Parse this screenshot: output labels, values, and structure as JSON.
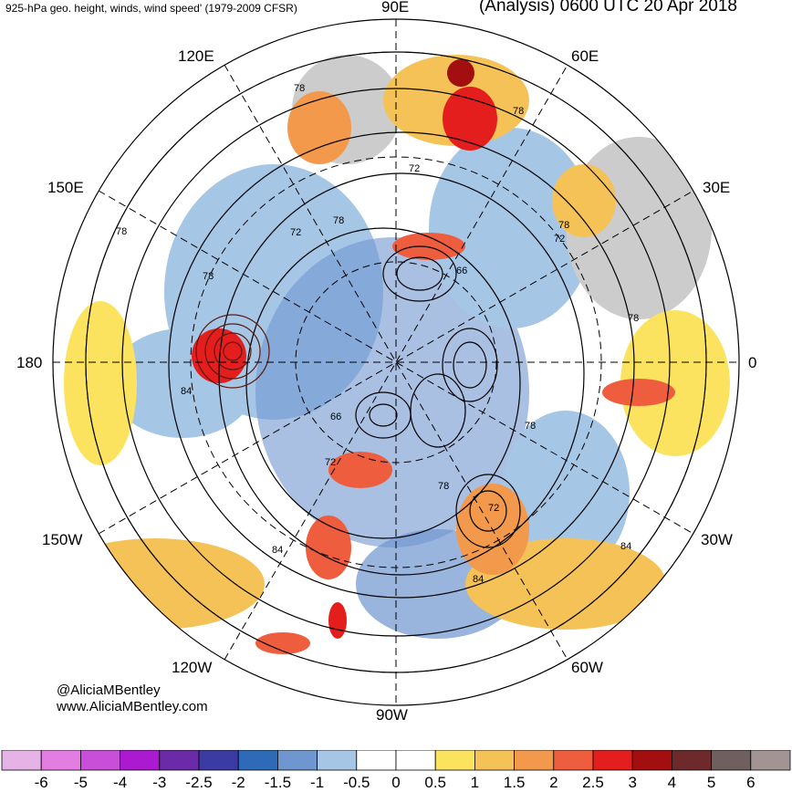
{
  "header": {
    "subtitle": "925-hPa geo. height, winds, wind speed' (1979-2009 CFSR)",
    "title": "(Analysis) 0600 UTC 20 Apr 2018"
  },
  "map": {
    "projection": "north-polar-stereographic",
    "meridian_labels": {
      "e90": "90E",
      "e60": "60E",
      "e120": "120E",
      "e30": "30E",
      "e150": "150E",
      "w180": "180",
      "e0": "0",
      "w150": "150W",
      "w30": "30W",
      "w120": "120W",
      "w60": "60W",
      "w90": "90W"
    },
    "contour_labels": [
      "78",
      "78",
      "72",
      "78",
      "72",
      "78",
      "66",
      "72",
      "78",
      "84",
      "66",
      "72",
      "78",
      "78",
      "72",
      "84",
      "84",
      "78",
      "84",
      "78"
    ]
  },
  "credits": {
    "handle": "@AliciaMBentley",
    "site": "www.AliciaMBentley.com"
  },
  "colorbar": {
    "colors": [
      "#e6b3e6",
      "#e27ee2",
      "#c94fd9",
      "#ab19d1",
      "#6b2aa8",
      "#3b3ba3",
      "#2f6ab8",
      "#6f96cf",
      "#a6c6e6",
      "#ffffff",
      "#ffffff",
      "#fbe35f",
      "#f5c257",
      "#f2994c",
      "#ef5d3f",
      "#e41d1d",
      "#a30e0e",
      "#6e2a2a",
      "#6f5f5f",
      "#a39494"
    ],
    "ticks": [
      "-6",
      "-5",
      "-4",
      "-3",
      "-2.5",
      "-2",
      "-1.5",
      "-1",
      "-0.5",
      "0",
      "0.5",
      "1",
      "1.5",
      "2",
      "2.5",
      "3",
      "4",
      "5",
      "6"
    ]
  }
}
